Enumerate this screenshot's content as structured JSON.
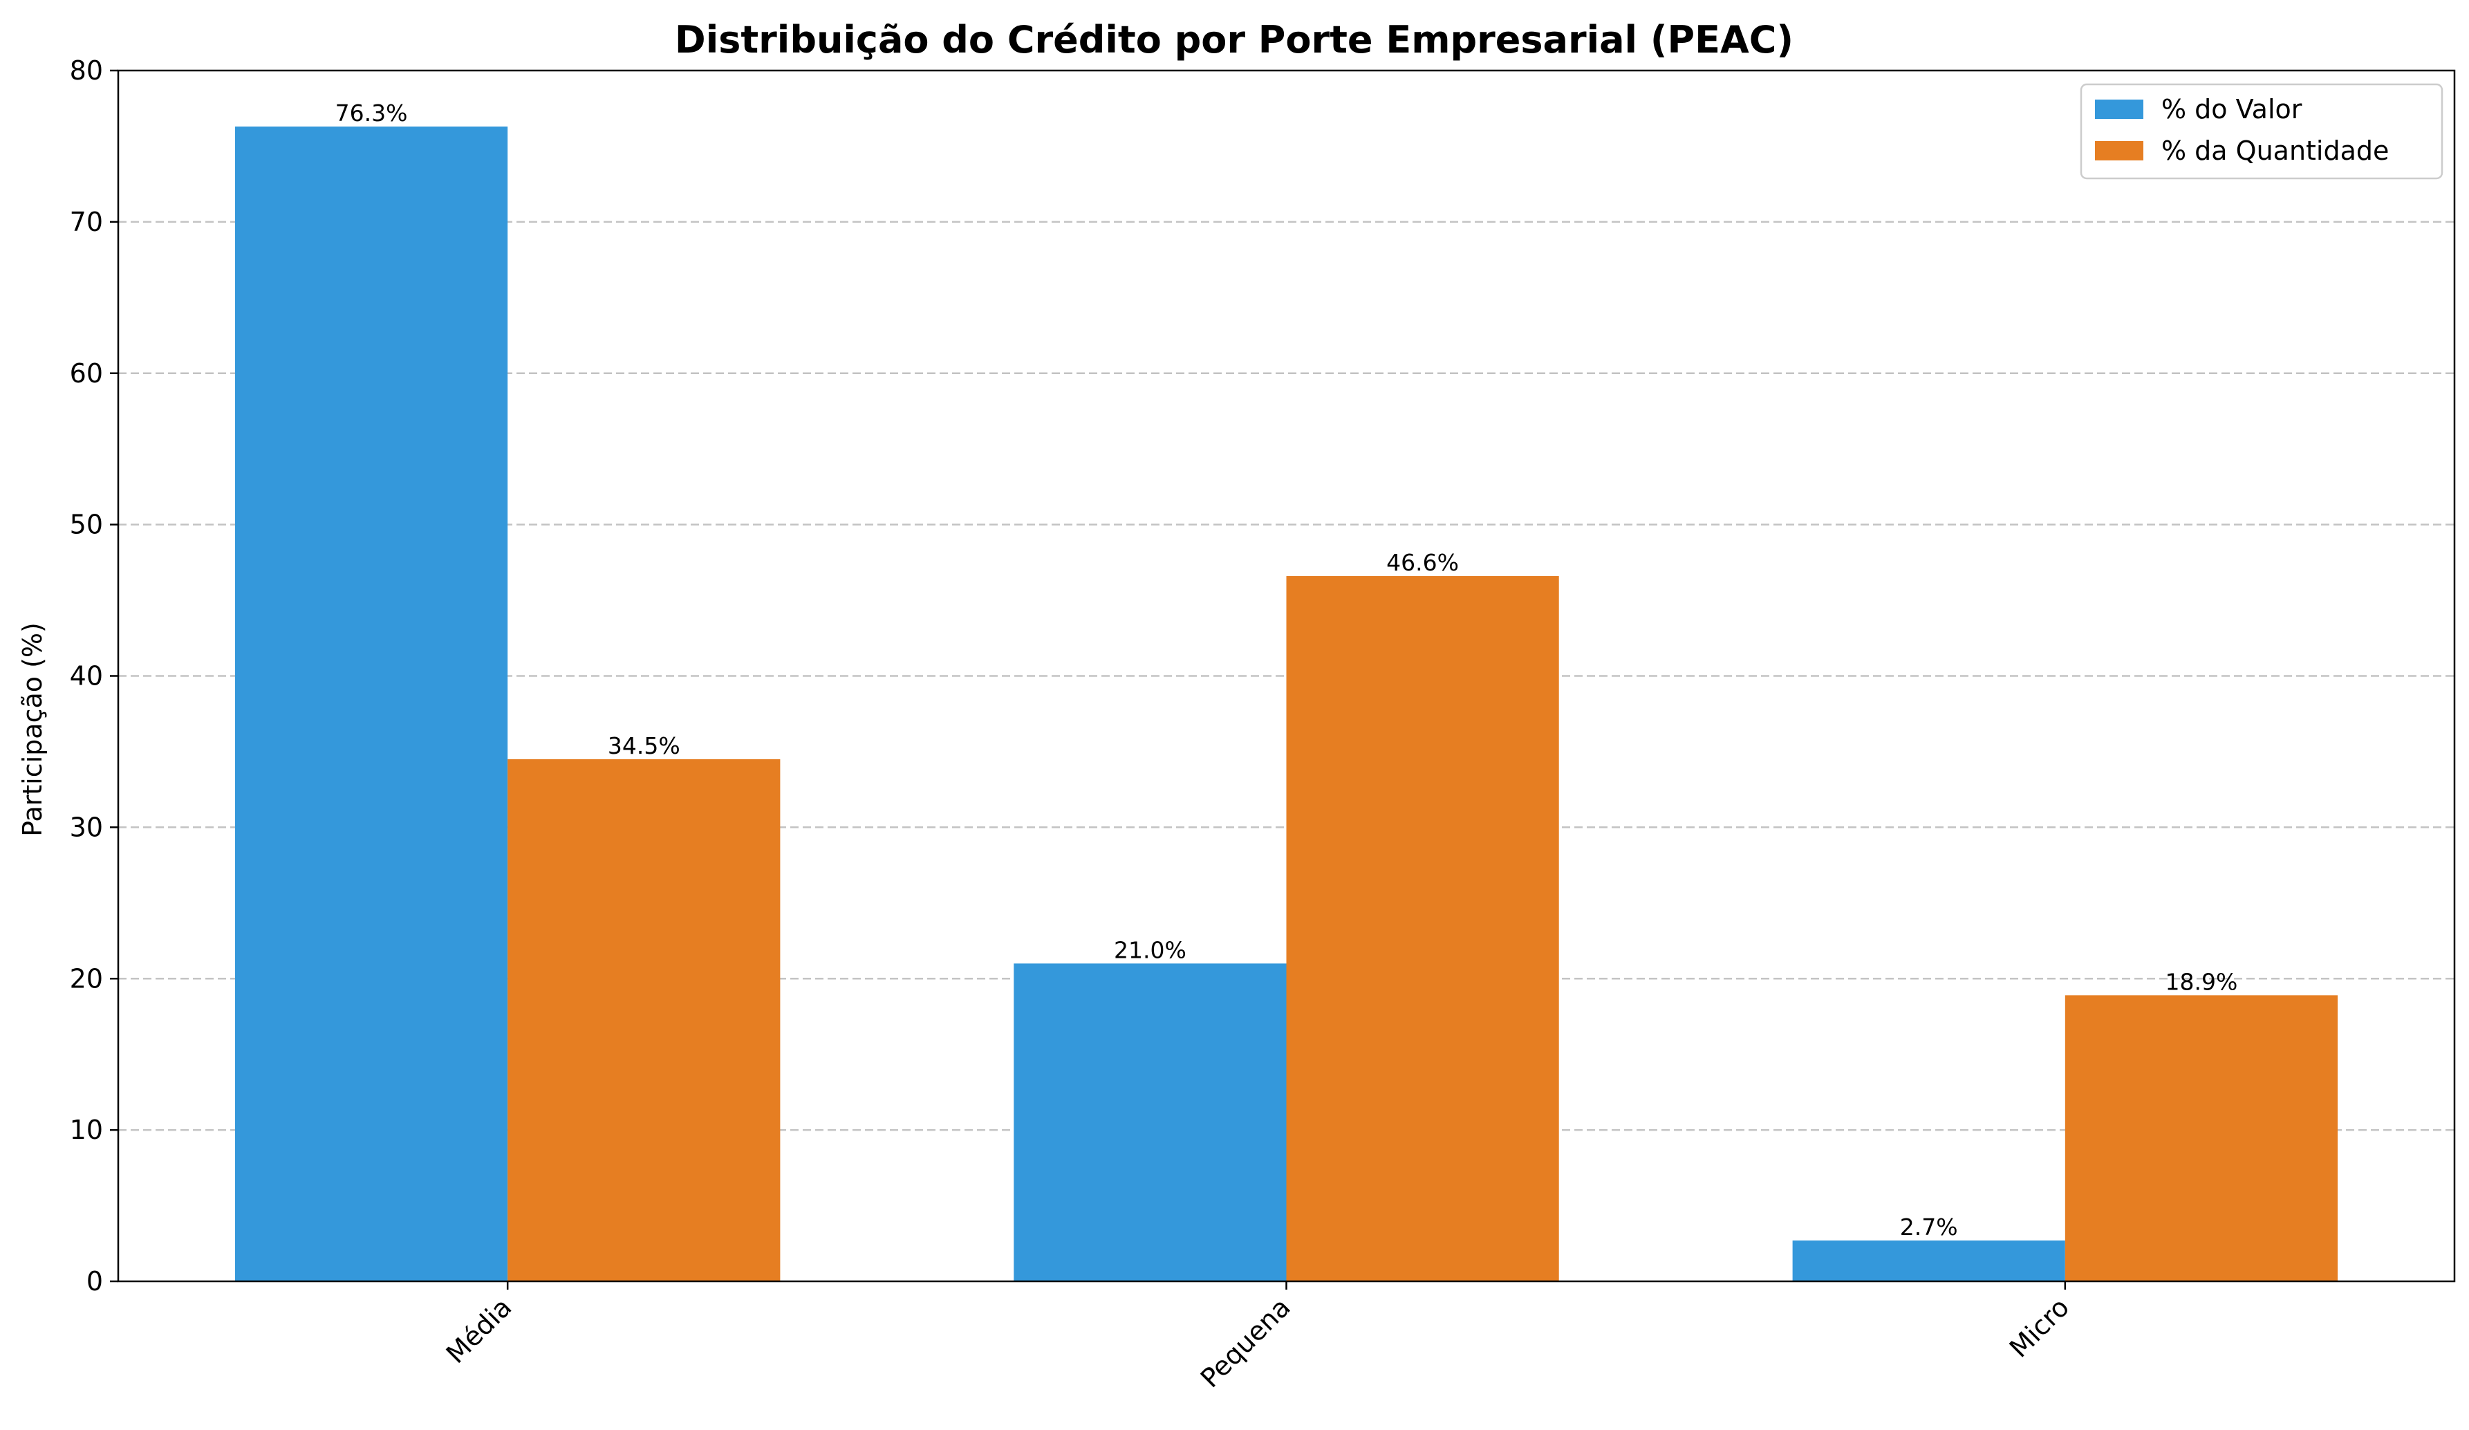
{
  "chart_data": {
    "type": "bar",
    "title": "Distribuição do Crédito por Porte Empresarial (PEAC)",
    "xlabel": "",
    "ylabel": "Participação (%)",
    "categories": [
      "Média",
      "Pequena",
      "Micro"
    ],
    "series": [
      {
        "name": "% do Valor",
        "color": "#3498db",
        "values": [
          76.3,
          21.0,
          2.7
        ],
        "labels": [
          "76.3%",
          "21.0%",
          "2.7%"
        ]
      },
      {
        "name": "% da Quantidade",
        "color": "#e67e22",
        "values": [
          34.5,
          46.6,
          18.9
        ],
        "labels": [
          "34.5%",
          "46.6%",
          "18.9%"
        ]
      }
    ],
    "ylim": [
      0,
      80
    ],
    "yticks": [
      0,
      10,
      20,
      30,
      40,
      50,
      60,
      70,
      80
    ],
    "ytick_labels": [
      "0",
      "10",
      "20",
      "30",
      "40",
      "50",
      "60",
      "70",
      "80"
    ],
    "grid": "y-dashed",
    "legend_position": "top-right"
  }
}
